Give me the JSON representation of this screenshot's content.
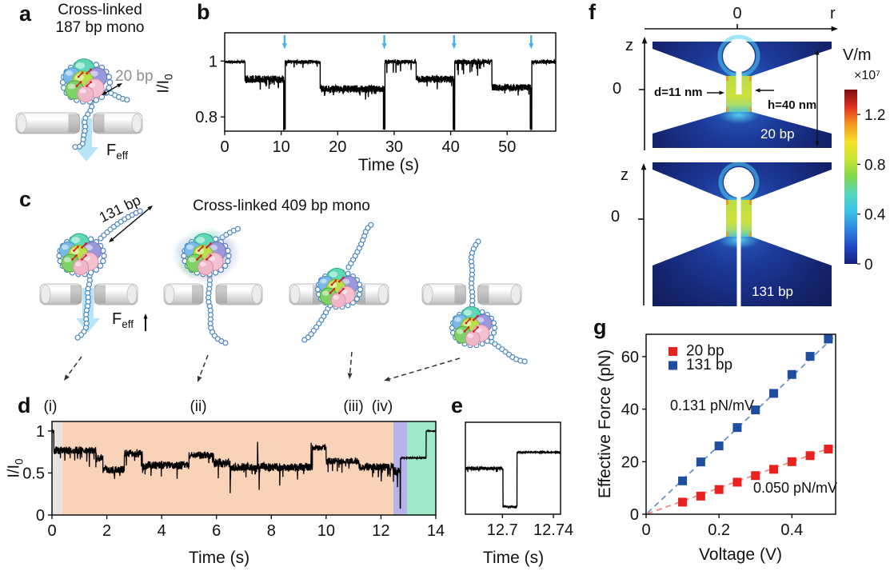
{
  "panels": {
    "a": {
      "label": "a",
      "title_line1": "Cross-linked",
      "title_line2": "187 bp mono",
      "bp_label": "20 bp",
      "force_main": "F",
      "force_sub": "eff"
    },
    "b": {
      "label": "b",
      "xlabel": "Time (s)",
      "ylabel_main": "I/I",
      "ylabel_sub": "0"
    },
    "c": {
      "label": "c",
      "title": "Cross-linked 409 bp mono",
      "bp_label": "131 bp",
      "force_main": "F",
      "force_sub": "eff"
    },
    "d": {
      "label": "d",
      "xlabel": "Time (s)",
      "ylabel_main": "I/I",
      "ylabel_sub": "0",
      "region_labels": [
        "(i)",
        "(ii)",
        "(iii)",
        "(iv)"
      ]
    },
    "e": {
      "label": "e",
      "xlabel": "Time (s)"
    },
    "f": {
      "label": "f",
      "r_axis_label": "r",
      "r_zero": "0",
      "z_axis_label": "z",
      "z_zero_top": "0",
      "z_zero_bottom": "0",
      "pore_diameter_label": "d=11 nm",
      "pore_height_label": "h=40 nm",
      "sim_top_label": "20 bp",
      "sim_bottom_label": "131 bp"
    },
    "g": {
      "label": "g",
      "xlabel": "Voltage (V)",
      "ylabel": "Effective Force (pN)"
    }
  },
  "chart_data": [
    {
      "id": "b",
      "type": "line",
      "title": "",
      "xlabel": "Time (s)",
      "ylabel": "I/I0",
      "xlim": [
        0,
        58.6
      ],
      "ylim": [
        0.749,
        1.101
      ],
      "xticks": [
        0,
        10,
        20,
        30,
        40,
        50
      ],
      "yticks": [
        1,
        0.8
      ],
      "grid": false,
      "dt": 0.03,
      "seed": 11,
      "trace_color": "#000000",
      "arrow_color": "#45b4e5",
      "arrows_x": [
        10.6,
        28.25,
        40.6,
        54.25
      ],
      "segments_fmt": "[x0,x1,level,noise,spike_prob,spike_amp]",
      "segments": [
        [
          0,
          3.6,
          0.997,
          0.005,
          0,
          0
        ],
        [
          3.6,
          10.45,
          0.935,
          0.014,
          0.04,
          0.03
        ],
        [
          10.45,
          10.55,
          0.757,
          0.004,
          0,
          0
        ],
        [
          10.55,
          10.62,
          0.93,
          0.01,
          0,
          0
        ],
        [
          10.62,
          10.72,
          0.757,
          0.004,
          0,
          0
        ],
        [
          10.72,
          16.9,
          0.997,
          0.006,
          0.03,
          0.025
        ],
        [
          16.9,
          28.1,
          0.9,
          0.013,
          0.04,
          0.03
        ],
        [
          28.1,
          28.2,
          0.757,
          0.004,
          0,
          0
        ],
        [
          28.2,
          28.27,
          0.9,
          0.01,
          0,
          0
        ],
        [
          28.27,
          28.37,
          0.757,
          0.004,
          0,
          0
        ],
        [
          28.37,
          33.9,
          0.997,
          0.007,
          0.04,
          0.04
        ],
        [
          33.9,
          40.45,
          0.935,
          0.013,
          0.04,
          0.035
        ],
        [
          40.45,
          40.55,
          0.757,
          0.004,
          0,
          0
        ],
        [
          40.55,
          40.62,
          0.93,
          0.01,
          0,
          0
        ],
        [
          40.62,
          40.72,
          0.757,
          0.004,
          0,
          0
        ],
        [
          40.72,
          47.3,
          0.997,
          0.008,
          0.05,
          0.05
        ],
        [
          47.3,
          54.1,
          0.905,
          0.013,
          0.04,
          0.03
        ],
        [
          54.1,
          54.2,
          0.757,
          0.004,
          0,
          0
        ],
        [
          54.2,
          54.27,
          0.9,
          0.01,
          0,
          0
        ],
        [
          54.27,
          54.37,
          0.757,
          0.004,
          0,
          0
        ],
        [
          54.37,
          58.6,
          0.997,
          0.007,
          0,
          0
        ]
      ],
      "events": []
    },
    {
      "id": "d",
      "type": "line",
      "title": "",
      "xlabel": "Time (s)",
      "ylabel": "I/I0",
      "xlim": [
        0,
        14
      ],
      "ylim": [
        0,
        1.113
      ],
      "xticks": [
        0,
        2,
        4,
        6,
        8,
        10,
        12,
        14
      ],
      "yticks": [
        0,
        0.5,
        1
      ],
      "grid": false,
      "dt": 0.008,
      "seed": 5,
      "trace_color": "#000000",
      "regions_fmt": "[x0,x1,color] background bands (i)-(iv)",
      "regions": [
        [
          0,
          0.37,
          "#e6e4e3"
        ],
        [
          0.37,
          12.45,
          "#f9d3b8"
        ],
        [
          12.45,
          12.95,
          "#b7b4ec"
        ],
        [
          12.95,
          14,
          "#9fe9ca"
        ]
      ],
      "segments": [
        [
          0,
          0.07,
          1.0,
          0.01,
          0,
          0
        ],
        [
          0.07,
          1.6,
          0.77,
          0.045,
          0.06,
          0.18
        ],
        [
          1.6,
          1.86,
          0.68,
          0.05,
          0.04,
          0.1
        ],
        [
          1.86,
          2.64,
          0.54,
          0.045,
          0.04,
          0.1
        ],
        [
          2.64,
          3.3,
          0.73,
          0.045,
          0.05,
          0.15
        ],
        [
          3.3,
          5.0,
          0.59,
          0.05,
          0.05,
          0.14
        ],
        [
          5.0,
          5.9,
          0.71,
          0.045,
          0.04,
          0.12
        ],
        [
          5.9,
          6.5,
          0.62,
          0.055,
          0.06,
          0.2
        ],
        [
          6.5,
          9.5,
          0.57,
          0.05,
          0.05,
          0.15
        ],
        [
          9.5,
          10.0,
          0.8,
          0.035,
          0,
          0
        ],
        [
          10.0,
          11.2,
          0.64,
          0.04,
          0.04,
          0.12
        ],
        [
          11.2,
          12.45,
          0.57,
          0.045,
          0.06,
          0.14
        ],
        [
          12.45,
          12.7,
          0.52,
          0.05,
          0.1,
          0.18
        ],
        [
          12.7,
          12.715,
          0.08,
          0.01,
          0,
          0
        ],
        [
          12.715,
          13.65,
          0.68,
          0.007,
          0,
          0
        ],
        [
          13.65,
          14.0,
          1.0,
          0.005,
          0,
          0
        ]
      ],
      "events": [
        [
          6.5,
          0.26
        ],
        [
          7.5,
          0.87
        ],
        [
          7.55,
          0.3
        ],
        [
          8.3,
          0.35
        ],
        [
          9.45,
          0.86
        ],
        [
          12.0,
          0.4
        ],
        [
          12.6,
          0.33
        ]
      ]
    },
    {
      "id": "e",
      "type": "line",
      "title": "",
      "xlabel": "Time (s)",
      "ylabel": "",
      "xlim": [
        12.671,
        12.7456
      ],
      "ylim": [
        0,
        1.113
      ],
      "xticks": [
        12.7,
        12.74
      ],
      "yticks": [],
      "grid": false,
      "dt": 0.00012,
      "seed": 3,
      "trace_color": "#000000",
      "segments": [
        [
          12.671,
          12.7005,
          0.555,
          0.02,
          0.05,
          0.05
        ],
        [
          12.7005,
          12.7115,
          0.09,
          0.008,
          0,
          0
        ],
        [
          12.7115,
          12.7456,
          0.75,
          0.007,
          0,
          0
        ]
      ],
      "events": []
    },
    {
      "id": "g",
      "type": "scatter",
      "title": "",
      "xlabel": "Voltage (V)",
      "ylabel": "Effective Force (pN)",
      "xlim": [
        0,
        0.52
      ],
      "ylim": [
        0,
        68.5
      ],
      "xticks": [
        0,
        0.2,
        0.4
      ],
      "yticks": [
        0,
        20,
        40,
        60
      ],
      "grid": false,
      "legend_position": "top-left",
      "x": [
        0.1,
        0.15,
        0.2,
        0.25,
        0.3,
        0.35,
        0.4,
        0.45,
        0.5
      ],
      "series": [
        {
          "name": "20 bp",
          "color": "#e8231f",
          "line_color": "#f08a7e",
          "marker": "square",
          "values": [
            4.6,
            6.9,
            9.4,
            12.2,
            14.7,
            17.1,
            20,
            22.3,
            24.8
          ],
          "slope_pN_per_V": 50,
          "slope_label": "0.050 pN/mV"
        },
        {
          "name": "131 bp",
          "color": "#1f4da0",
          "line_color": "#6b93cd",
          "marker": "square",
          "values": [
            12.7,
            19.9,
            26,
            33,
            39.7,
            46,
            53.2,
            60.1,
            66.7
          ],
          "slope_pN_per_V": 131,
          "slope_label": "0.131 pN/mV"
        }
      ]
    },
    {
      "id": "f-colorbar",
      "type": "colorbar",
      "title": "V/m",
      "multiplier": "×10⁷",
      "ticks": [
        0,
        0.4,
        0.8,
        1.2
      ],
      "vmax": 1.4,
      "stops": [
        [
          0,
          "#161f7e"
        ],
        [
          0.1,
          "#2149c6"
        ],
        [
          0.2,
          "#2f86e0"
        ],
        [
          0.3,
          "#3cc3e8"
        ],
        [
          0.4,
          "#52d6c0"
        ],
        [
          0.5,
          "#7fd84a"
        ],
        [
          0.6,
          "#c8e432"
        ],
        [
          0.7,
          "#f5e02a"
        ],
        [
          0.8,
          "#f5971e"
        ],
        [
          0.9,
          "#e03020"
        ],
        [
          1,
          "#7d0c10"
        ]
      ]
    }
  ],
  "colors": {
    "blue_arrow": "#45b4e5",
    "force_arrow_fill": "#b5e3f7",
    "dna_stroke": "#4a86c0",
    "sim_navy": "#15246f",
    "sim_channel": "#cfe13c",
    "membrane": "#e3e3e3",
    "region_i": "#e6e4e3",
    "region_ii": "#f9d3b8",
    "region_iii": "#b7b4ec",
    "region_iv": "#9fe9ca"
  }
}
